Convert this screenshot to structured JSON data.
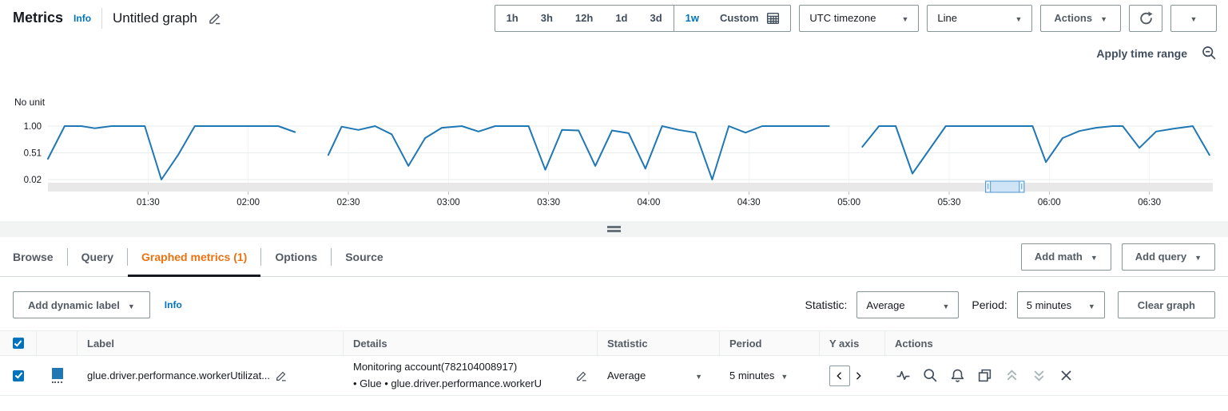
{
  "header": {
    "app_title": "Metrics",
    "info_label": "Info",
    "graph_title": "Untitled graph"
  },
  "time_controls": {
    "ranges": [
      "1h",
      "3h",
      "12h",
      "1d",
      "3d",
      "1w"
    ],
    "active_range": "1w",
    "custom_label": "Custom",
    "timezone_value": "UTC timezone",
    "chart_type_value": "Line",
    "actions_label": "Actions"
  },
  "chart_header": {
    "apply_time_range_label": "Apply time range"
  },
  "chart_data": {
    "type": "line",
    "unit_label": "No unit",
    "y_ticks": [
      {
        "label": "1.00",
        "value": 1.0
      },
      {
        "label": "0.51",
        "value": 0.51
      },
      {
        "label": "0.02",
        "value": 0.02
      }
    ],
    "ylim": [
      0.02,
      1.0
    ],
    "x_ticks": [
      {
        "label": "01:30",
        "minute": 30
      },
      {
        "label": "02:00",
        "minute": 60
      },
      {
        "label": "02:30",
        "minute": 90
      },
      {
        "label": "03:00",
        "minute": 120
      },
      {
        "label": "03:30",
        "minute": 150
      },
      {
        "label": "04:00",
        "minute": 180
      },
      {
        "label": "04:30",
        "minute": 210
      },
      {
        "label": "05:00",
        "minute": 240
      },
      {
        "label": "05:30",
        "minute": 270
      },
      {
        "label": "06:00",
        "minute": 300
      },
      {
        "label": "06:30",
        "minute": 330
      }
    ],
    "x_domain_minutes": [
      0,
      349
    ],
    "series": [
      {
        "name": "glue.driver.performance.workerUtilization",
        "color": "#1f77b4",
        "points": [
          [
            0,
            0.4
          ],
          [
            5,
            1
          ],
          [
            10,
            1
          ],
          [
            14,
            0.96
          ],
          [
            19,
            1
          ],
          [
            29,
            1
          ],
          [
            34,
            0.02
          ],
          [
            39,
            0.47
          ],
          [
            44,
            1
          ],
          [
            60,
            1
          ],
          [
            69,
            1
          ],
          [
            74,
            0.89
          ],
          null,
          [
            84,
            0.47
          ],
          [
            88,
            0.99
          ],
          [
            93,
            0.93
          ],
          [
            98,
            1
          ],
          [
            103,
            0.85
          ],
          [
            108,
            0.27
          ],
          [
            113,
            0.78
          ],
          [
            118,
            0.97
          ],
          [
            124,
            1
          ],
          [
            129,
            0.9
          ],
          [
            134,
            1
          ],
          [
            144,
            1
          ],
          [
            149,
            0.2
          ],
          [
            154,
            0.93
          ],
          [
            159,
            0.92
          ],
          [
            164,
            0.27
          ],
          [
            169,
            0.92
          ],
          [
            174,
            0.87
          ],
          [
            179,
            0.22
          ],
          [
            184,
            1
          ],
          [
            189,
            0.93
          ],
          [
            194,
            0.88
          ],
          [
            199,
            0.02
          ],
          [
            204,
            1
          ],
          [
            209,
            0.88
          ],
          [
            214,
            1
          ],
          [
            234,
            1
          ],
          null,
          [
            244,
            0.62
          ],
          [
            249,
            1
          ],
          [
            254,
            1
          ],
          [
            259,
            0.13
          ],
          [
            269,
            1
          ],
          [
            295,
            1
          ],
          [
            299,
            0.34
          ],
          [
            304,
            0.78
          ],
          [
            309,
            0.91
          ],
          [
            314,
            0.97
          ],
          [
            319,
            1
          ],
          [
            322,
            1
          ],
          [
            327,
            0.6
          ],
          [
            332,
            0.9
          ],
          [
            337,
            0.95
          ],
          [
            343,
            1
          ],
          [
            348,
            0.47
          ]
        ]
      }
    ],
    "scrollbar": {
      "start_frac": 0.805,
      "end_frac": 0.838
    }
  },
  "tabs": [
    {
      "label": "Browse",
      "active": false
    },
    {
      "label": "Query",
      "active": false
    },
    {
      "label": "Graphed metrics (1)",
      "active": true
    },
    {
      "label": "Options",
      "active": false
    },
    {
      "label": "Source",
      "active": false
    }
  ],
  "tab_actions": {
    "add_math_label": "Add math",
    "add_query_label": "Add query"
  },
  "toolbar": {
    "add_dynamic_label": "Add dynamic label",
    "info_label": "Info",
    "statistic_label": "Statistic:",
    "statistic_value": "Average",
    "period_label": "Period:",
    "period_value": "5 minutes",
    "clear_graph_label": "Clear graph"
  },
  "table": {
    "columns": {
      "label": "Label",
      "details": "Details",
      "statistic": "Statistic",
      "period": "Period",
      "y_axis": "Y axis",
      "actions": "Actions"
    },
    "row": {
      "checked": true,
      "color": "#1f77b4",
      "label": "glue.driver.performance.workerUtilizat...",
      "details_line1": "Monitoring account(782104008917)",
      "details_line2": "• Glue • glue.driver.performance.workerU",
      "statistic": "Average",
      "period": "5 minutes"
    }
  }
}
